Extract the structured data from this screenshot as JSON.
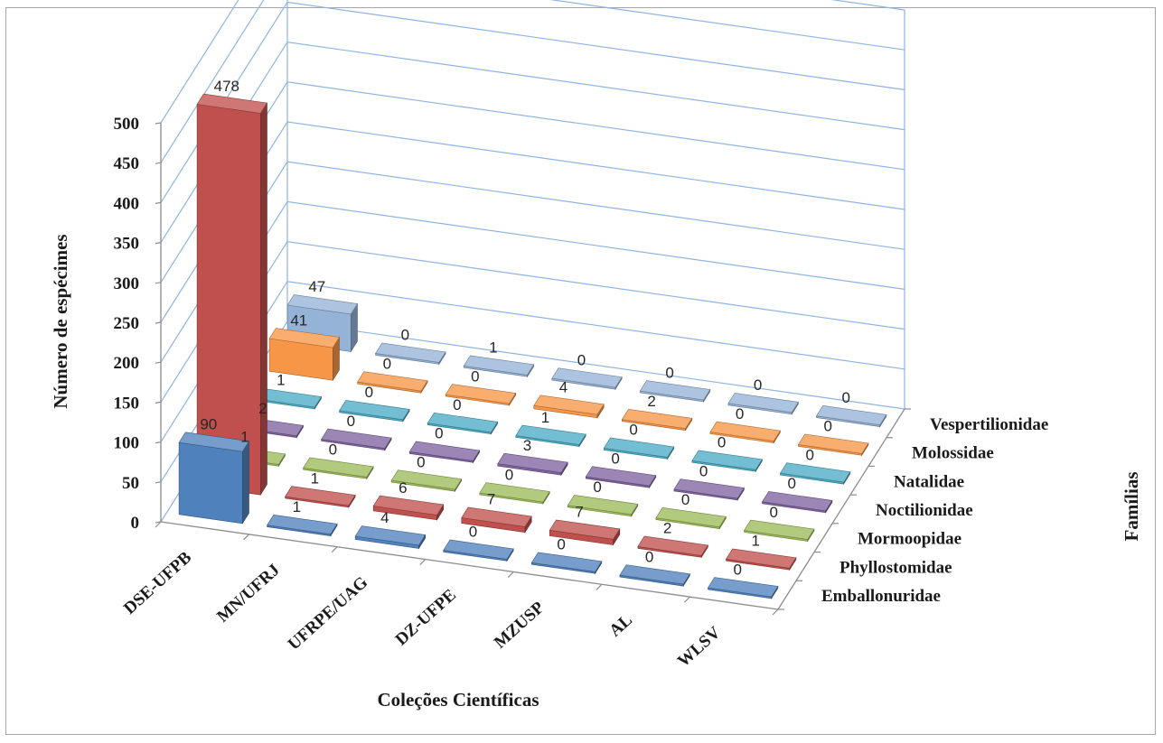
{
  "chart_data": {
    "type": "bar",
    "subtype": "3d-column",
    "title": "",
    "xlabel": "Coleções Científicas",
    "ylabel": "Número de espécimes",
    "zlabel": "Famílias",
    "ylim": [
      0,
      500
    ],
    "yticks": [
      "0",
      "50",
      "100",
      "150",
      "200",
      "250",
      "300",
      "350",
      "400",
      "450",
      "500"
    ],
    "grid": true,
    "categories": [
      "DSE-UFPB",
      "MN/UFRJ",
      "UFRPE/UAG",
      "DZ-UFPE",
      "MZUSP",
      "AL",
      "WLSV"
    ],
    "series": [
      {
        "name": "Emballonuridae",
        "color": "#4f81bd",
        "values": [
          90,
          1,
          4,
          0,
          0,
          0,
          0
        ]
      },
      {
        "name": "Phyllostomidae",
        "color": "#c0504d",
        "values": [
          478,
          1,
          6,
          7,
          7,
          2,
          1
        ]
      },
      {
        "name": "Mormoopidae",
        "color": "#9bbb59",
        "values": [
          1,
          0,
          0,
          0,
          0,
          0,
          0
        ]
      },
      {
        "name": "Noctilionidae",
        "color": "#8064a2",
        "values": [
          2,
          0,
          0,
          3,
          0,
          0,
          0
        ]
      },
      {
        "name": "Natalidae",
        "color": "#4bacc6",
        "values": [
          1,
          0,
          0,
          1,
          0,
          0,
          0
        ]
      },
      {
        "name": "Molossidae",
        "color": "#f79646",
        "values": [
          41,
          0,
          0,
          4,
          2,
          0,
          0
        ]
      },
      {
        "name": "Vespertilionidae",
        "color": "#95b3d7",
        "values": [
          47,
          0,
          1,
          0,
          0,
          0,
          0
        ]
      }
    ]
  }
}
